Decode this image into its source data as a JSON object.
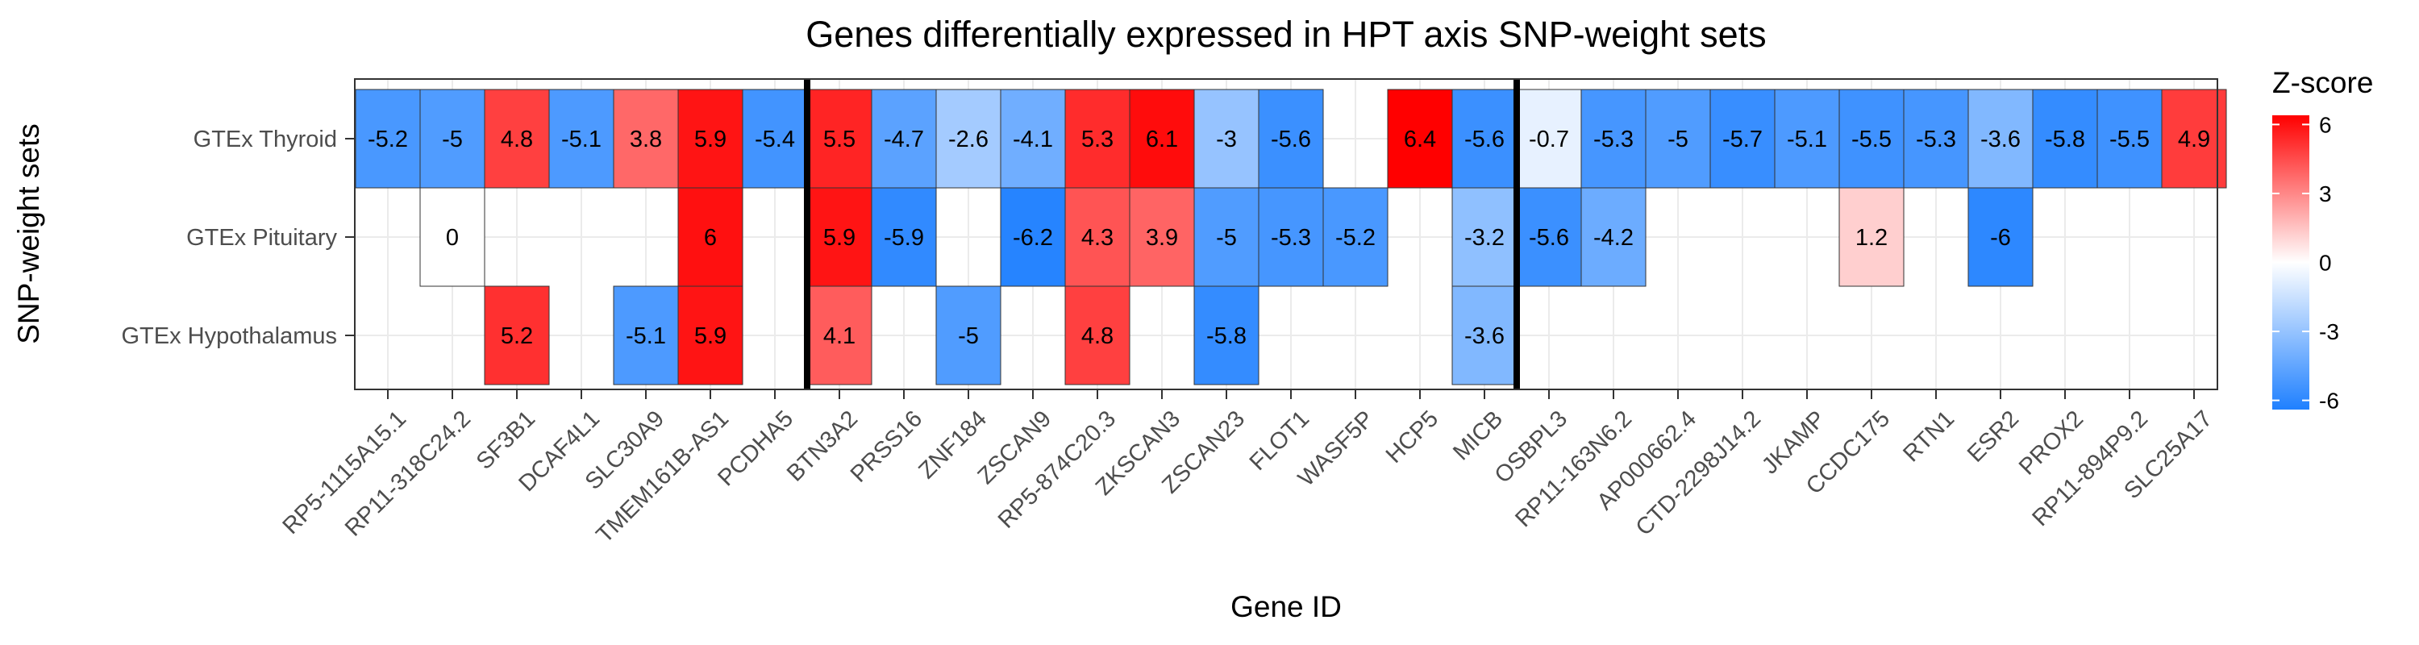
{
  "chart_data": {
    "type": "heatmap",
    "title": "Genes differentially expressed in HPT axis SNP-weight sets",
    "xlabel": "Gene ID",
    "ylabel": "SNP-weight sets",
    "rows": [
      "GTEx Thyroid",
      "GTEx Pituitary",
      "GTEx Hypothalamus"
    ],
    "columns": [
      "RP5-1115A15.1",
      "RP11-318C24.2",
      "SF3B1",
      "DCAF4L1",
      "SLC30A9",
      "TMEM161B-AS1",
      "PCDHA5",
      "BTN3A2",
      "PRSS16",
      "ZNF184",
      "ZSCAN9",
      "RP5-874C20.3",
      "ZKSCAN3",
      "ZSCAN23",
      "FLOT1",
      "WASF5P",
      "HCP5",
      "MICB",
      "OSBPL3",
      "RP11-163N6.2",
      "AP000662.4",
      "CTD-2298J14.2",
      "JKAMP",
      "CCDC175",
      "RTN1",
      "ESR2",
      "PROX2",
      "RP11-894P9.2",
      "SLC25A17"
    ],
    "values": [
      [
        -5.2,
        -5,
        4.8,
        -5.1,
        3.8,
        5.9,
        -5.4,
        5.5,
        -4.7,
        -2.6,
        -4.1,
        5.3,
        6.1,
        -3,
        -5.6,
        null,
        6.4,
        -5.6,
        -0.7,
        -5.3,
        -5,
        -5.7,
        -5.1,
        -5.5,
        -5.3,
        -3.6,
        -5.8,
        -5.5,
        4.9
      ],
      [
        null,
        0,
        null,
        null,
        null,
        6,
        null,
        5.9,
        -5.9,
        null,
        -6.2,
        4.3,
        3.9,
        -5,
        -5.3,
        -5.2,
        null,
        -3.2,
        -5.6,
        -4.2,
        null,
        null,
        null,
        1.2,
        null,
        -6,
        null,
        null,
        null
      ],
      [
        null,
        null,
        5.2,
        null,
        -5.1,
        5.9,
        null,
        4.1,
        null,
        -5,
        null,
        4.8,
        null,
        -5.8,
        null,
        null,
        null,
        -3.6,
        null,
        null,
        null,
        null,
        null,
        null,
        null,
        null,
        null,
        null,
        null
      ]
    ],
    "group_separators_after_column": [
      "PCDHA5",
      "MICB"
    ],
    "legend": {
      "title": "Z-score",
      "ticks": [
        6,
        3,
        0,
        -3,
        -6
      ],
      "range": [
        -6.4,
        6.4
      ],
      "placement": "right"
    },
    "colors": {
      "low": "#1f80ff",
      "mid": "#ffffff",
      "high": "#ff0000"
    },
    "grid": true
  }
}
